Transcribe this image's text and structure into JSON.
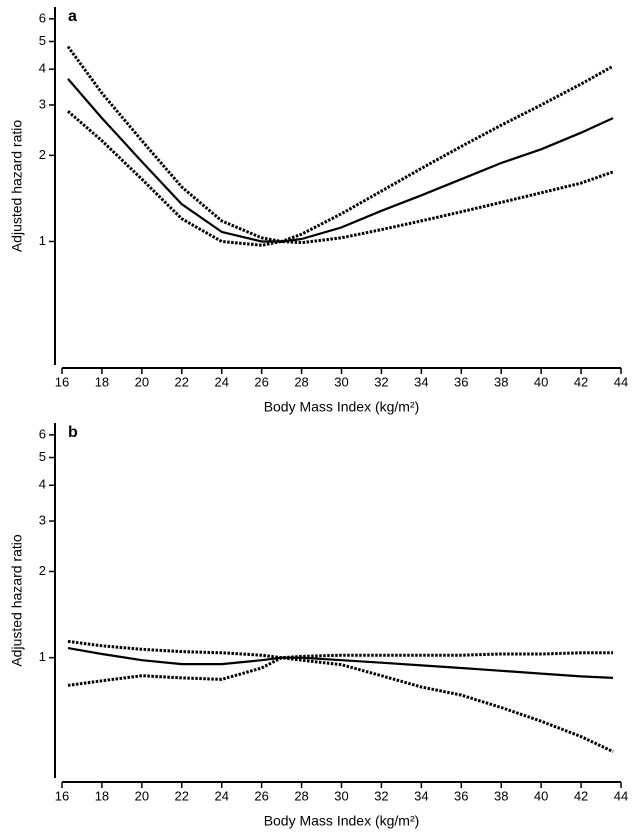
{
  "chart_data": [
    {
      "type": "line",
      "title": "a",
      "xlabel": "Body Mass Index (kg/m²)",
      "ylabel": "Adjusted hazard ratio",
      "yscale": "log",
      "xlim": [
        16,
        44
      ],
      "ylim": [
        0.37,
        6.6
      ],
      "xticks": [
        16,
        18,
        20,
        22,
        24,
        26,
        28,
        30,
        32,
        34,
        36,
        38,
        40,
        42,
        44
      ],
      "yticks": [
        1,
        2,
        3,
        4,
        5,
        6
      ],
      "x": [
        16.3,
        18,
        20,
        22,
        24,
        26,
        27,
        28,
        30,
        32,
        34,
        36,
        38,
        40,
        42,
        43.6
      ],
      "series": [
        {
          "color": "#000000",
          "dash": "solid",
          "values": [
            3.7,
            2.7,
            1.9,
            1.35,
            1.08,
            1.0,
            1.0,
            1.02,
            1.12,
            1.28,
            1.45,
            1.65,
            1.88,
            2.1,
            2.4,
            2.7
          ]
        },
        {
          "color": "#000000",
          "dash": "dotted",
          "values": [
            4.8,
            3.3,
            2.25,
            1.55,
            1.18,
            1.03,
            1.0,
            1.06,
            1.25,
            1.5,
            1.8,
            2.15,
            2.55,
            3.0,
            3.55,
            4.1
          ]
        },
        {
          "color": "#000000",
          "dash": "dotted",
          "values": [
            2.85,
            2.25,
            1.65,
            1.2,
            1.0,
            0.97,
            1.0,
            0.99,
            1.03,
            1.1,
            1.18,
            1.27,
            1.37,
            1.48,
            1.6,
            1.75
          ]
        }
      ]
    },
    {
      "type": "line",
      "title": "b",
      "xlabel": "Body Mass Index (kg/m²)",
      "ylabel": "Adjusted hazard ratio",
      "yscale": "log",
      "xlim": [
        16,
        44
      ],
      "ylim": [
        0.38,
        6.6
      ],
      "xticks": [
        16,
        18,
        20,
        22,
        24,
        26,
        28,
        30,
        32,
        34,
        36,
        38,
        40,
        42,
        44
      ],
      "yticks": [
        1,
        2,
        3,
        4,
        5,
        6
      ],
      "x": [
        16.3,
        18,
        20,
        22,
        24,
        26,
        27,
        28,
        30,
        32,
        34,
        36,
        38,
        40,
        42,
        43.6
      ],
      "series": [
        {
          "color": "#000000",
          "dash": "solid",
          "values": [
            1.08,
            1.03,
            0.98,
            0.95,
            0.95,
            0.98,
            1.0,
            1.0,
            0.98,
            0.96,
            0.94,
            0.92,
            0.9,
            0.88,
            0.86,
            0.85
          ]
        },
        {
          "color": "#000000",
          "dash": "dotted",
          "values": [
            1.14,
            1.1,
            1.07,
            1.05,
            1.04,
            1.02,
            1.0,
            1.01,
            1.02,
            1.02,
            1.02,
            1.02,
            1.03,
            1.03,
            1.04,
            1.04
          ]
        },
        {
          "color": "#000000",
          "dash": "dotted",
          "values": [
            0.8,
            0.83,
            0.865,
            0.85,
            0.84,
            0.92,
            1.0,
            0.98,
            0.945,
            0.865,
            0.79,
            0.74,
            0.67,
            0.6,
            0.53,
            0.47
          ]
        }
      ]
    }
  ]
}
